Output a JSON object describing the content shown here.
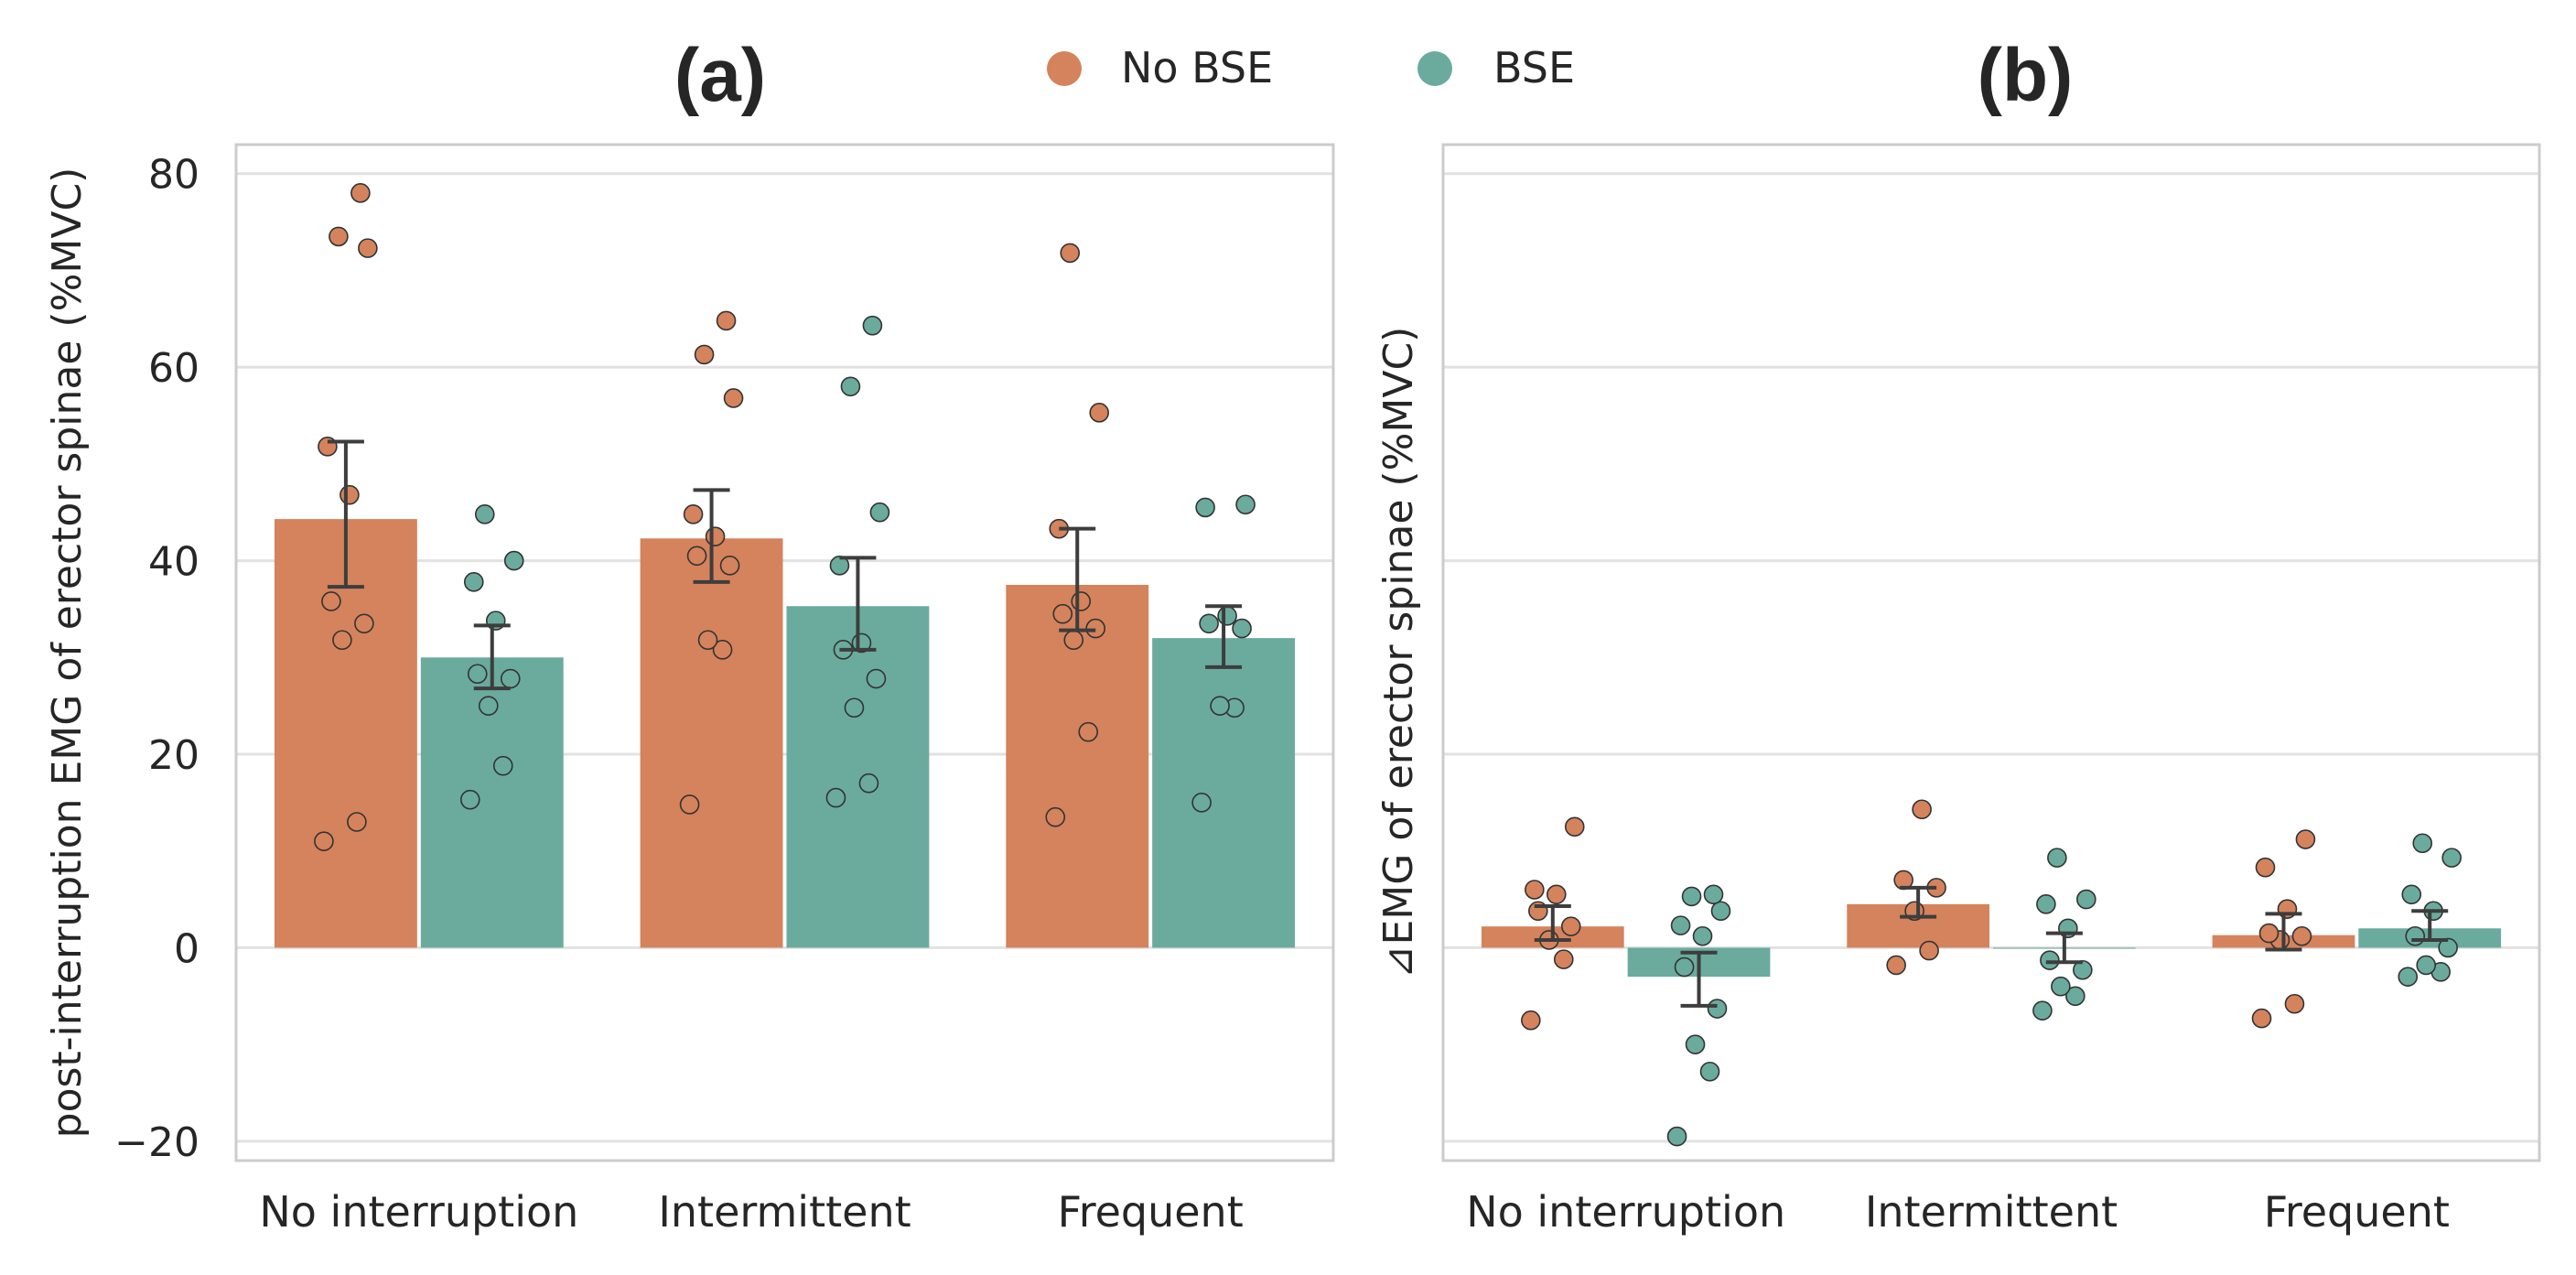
{
  "legend": {
    "items": [
      {
        "label": "No BSE",
        "color": "#d4835c"
      },
      {
        "label": "BSE",
        "color": "#6aab9e"
      }
    ]
  },
  "chart_data": [
    {
      "type": "bar",
      "title": "(a)",
      "xlabel": "",
      "ylabel": "post-interruption EMG of erector spinae (%MVC)",
      "categories": [
        "No interruption",
        "Intermittent",
        "Frequent"
      ],
      "ylim": [
        -22,
        83
      ],
      "yticks": [
        -20,
        0,
        20,
        40,
        60,
        80
      ],
      "ytick_labels": [
        "−20",
        "0",
        "20",
        "40",
        "60",
        "80"
      ],
      "grid": true,
      "series": [
        {
          "name": "No BSE",
          "color": "#d4835c",
          "values": [
            44.3,
            42.3,
            37.5
          ],
          "err_low": [
            37.3,
            37.8,
            32.8
          ],
          "err_high": [
            52.3,
            47.3,
            43.3
          ],
          "points": [
            [
              11.0,
              13.0,
              31.8,
              33.5,
              35.8,
              46.8,
              51.8,
              72.3,
              73.5,
              78.0
            ],
            [
              14.8,
              30.8,
              31.8,
              39.5,
              40.5,
              42.5,
              44.8,
              56.8,
              61.3,
              64.8
            ],
            [
              13.5,
              22.3,
              31.8,
              33.0,
              34.5,
              35.8,
              43.3,
              55.3,
              71.8
            ]
          ]
        },
        {
          "name": "BSE",
          "color": "#6aab9e",
          "values": [
            30.0,
            35.3,
            32.0
          ],
          "err_low": [
            26.8,
            30.8,
            29.0
          ],
          "err_high": [
            33.3,
            40.3,
            35.3
          ],
          "points": [
            [
              15.3,
              18.8,
              25.0,
              27.8,
              28.3,
              33.8,
              37.8,
              40.0,
              44.8
            ],
            [
              15.5,
              17.0,
              24.8,
              27.8,
              30.8,
              31.5,
              39.5,
              45.0,
              58.0,
              64.3
            ],
            [
              15.0,
              24.8,
              25.0,
              33.0,
              33.5,
              34.3,
              45.5,
              45.8
            ]
          ]
        }
      ]
    },
    {
      "type": "bar",
      "title": "(b)",
      "xlabel": "",
      "ylabel": "⊿EMG of erector spinae (%MVC)",
      "categories": [
        "No interruption",
        "Intermittent",
        "Frequent"
      ],
      "ylim": [
        -22,
        83
      ],
      "yticks": [
        -20,
        0,
        20,
        40,
        60,
        80
      ],
      "ytick_labels": [],
      "grid": true,
      "series": [
        {
          "name": "No BSE",
          "color": "#d4835c",
          "values": [
            2.2,
            4.5,
            1.3
          ],
          "err_low": [
            0.8,
            3.2,
            -0.2
          ],
          "err_high": [
            4.3,
            6.2,
            3.5
          ],
          "points": [
            [
              -7.5,
              -1.2,
              0.8,
              2.2,
              3.8,
              5.5,
              6.0,
              12.5
            ],
            [
              -1.8,
              -0.3,
              3.8,
              6.2,
              7.0,
              14.3
            ],
            [
              -7.3,
              -5.8,
              0.8,
              1.2,
              1.5,
              4.0,
              8.3,
              11.2
            ]
          ]
        },
        {
          "name": "BSE",
          "color": "#6aab9e",
          "values": [
            -3.0,
            0.0,
            2.0
          ],
          "err_low": [
            -6.0,
            -1.5,
            0.8
          ],
          "err_high": [
            -0.5,
            1.5,
            3.8
          ],
          "points": [
            [
              -19.5,
              -12.8,
              -10.0,
              -6.3,
              -2.0,
              1.2,
              2.3,
              3.8,
              5.3,
              5.5
            ],
            [
              -6.5,
              -5.0,
              -4.0,
              -2.3,
              -1.3,
              2.0,
              4.5,
              5.0,
              9.3
            ],
            [
              -3.0,
              -2.5,
              -1.8,
              0.0,
              1.2,
              3.8,
              5.5,
              9.3,
              10.8
            ]
          ]
        }
      ]
    }
  ]
}
